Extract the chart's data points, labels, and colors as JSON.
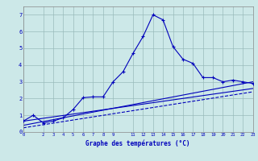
{
  "xlabel": "Graphe des températures (°C)",
  "bg_color": "#cce8e8",
  "line_color": "#0000bb",
  "grid_color": "#99bbbb",
  "xlim": [
    0,
    23
  ],
  "ylim": [
    0,
    7.5
  ],
  "xticks": [
    0,
    2,
    3,
    4,
    5,
    6,
    7,
    8,
    9,
    11,
    12,
    13,
    14,
    15,
    16,
    17,
    18,
    19,
    20,
    21,
    22,
    23
  ],
  "yticks": [
    0,
    1,
    2,
    3,
    4,
    5,
    6,
    7
  ],
  "line1_x": [
    0,
    1,
    2,
    3,
    4,
    5,
    6,
    7,
    8,
    9,
    10,
    11,
    12,
    13,
    14,
    15,
    16,
    17,
    18,
    19,
    20,
    21,
    22,
    23
  ],
  "line1_y": [
    0.65,
    1.0,
    0.55,
    0.65,
    0.85,
    1.35,
    2.05,
    2.1,
    2.1,
    3.0,
    3.6,
    4.7,
    5.7,
    7.0,
    6.7,
    5.1,
    4.35,
    4.1,
    3.25,
    3.25,
    3.0,
    3.1,
    3.0,
    2.9
  ],
  "line2_x": [
    0,
    23
  ],
  "line2_y": [
    0.65,
    2.6
  ],
  "line3_x": [
    0,
    23
  ],
  "line3_y": [
    0.4,
    3.0
  ],
  "line4_x": [
    0,
    23
  ],
  "line4_y": [
    0.25,
    2.4
  ]
}
